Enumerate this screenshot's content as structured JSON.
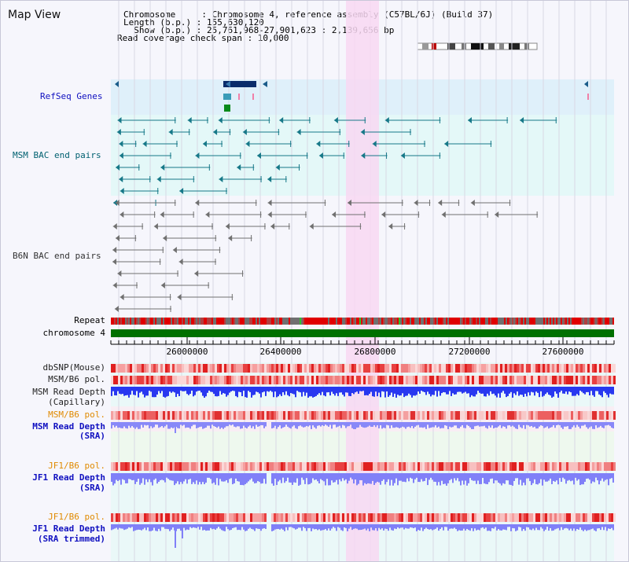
{
  "map_title": "Map View",
  "header": {
    "line1": "Chromosome     : Chromosome 4, reference assembly (C57BL/6J) (Build 37)",
    "line2": "Length (b.p.) : 155,630,120",
    "line3": "  Show (b.p.) : 25,761,968-27,901,623 : 2,139,656 bp",
    "line4": "Read coverage check span : 10,000"
  },
  "track_labels": {
    "refseq": "RefSeq Genes",
    "msm_bac": "MSM BAC end pairs",
    "b6n_bac": "B6N BAC end pairs",
    "repeat": "Repeat",
    "chromosome": "chromosome 4",
    "dbsnp": "dbSNP(Mouse)",
    "msm_b6_pol_1": "MSM/B6 pol.",
    "msm_depth_cap_1": "MSM Read Depth",
    "msm_depth_cap_2": "(Capillary)",
    "msm_b6_pol_2": "MSM/B6 pol.",
    "msm_depth_sra_1": "MSM Read Depth",
    "msm_depth_sra_2": "(SRA)",
    "jf1_b6_pol_1": "JF1/B6 pol.",
    "jf1_depth_sra_1": "JF1 Read Depth",
    "jf1_depth_sra_2": "(SRA)",
    "jf1_b6_pol_2": "JF1/B6 pol.",
    "jf1_depth_trim_1": "JF1 Read Depth",
    "jf1_depth_trim_2": "(SRA trimmed)"
  },
  "axis": {
    "ticks": [
      "26000000",
      "26400000",
      "26800000",
      "27200000",
      "27600000"
    ]
  },
  "colors": {
    "label_blue": "#1010c0",
    "label_orange": "#e08a00",
    "label_teal": "#006070",
    "highlight": "#f8d8f2",
    "chromosome_bar": "#007000",
    "refseq_band": "#dff0fa",
    "msm_band": "#e4f8f8",
    "depth_blue": "#2838f0",
    "depth_light": "#8888f8"
  }
}
